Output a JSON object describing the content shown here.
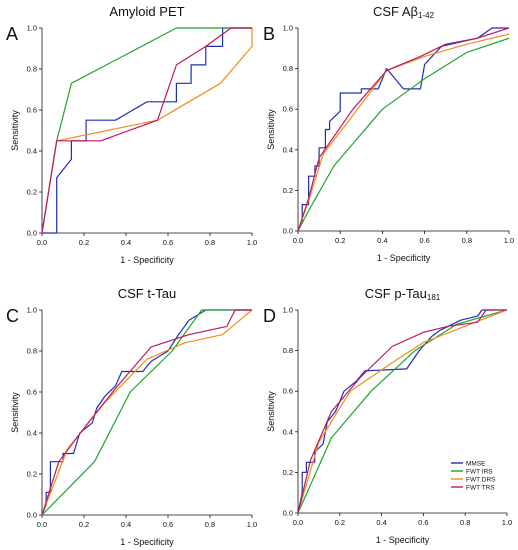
{
  "chart_data": [
    {
      "type": "line",
      "panel_label": "A",
      "title": "Amyloid PET",
      "title_subscript": "",
      "xlabel": "1 - Specificity",
      "ylabel": "Sensitivity",
      "xlim": [
        0,
        1
      ],
      "ylim": [
        0,
        1
      ],
      "xticks": [
        "0.0",
        "0.2",
        "0.4",
        "0.6",
        "0.8",
        "1.0"
      ],
      "yticks": [
        "0.0",
        "0.2",
        "0.4",
        "0.6",
        "0.8",
        "1.0"
      ],
      "legend": null,
      "series": [
        {
          "name": "MMSE",
          "color": "#1f2fb3",
          "points": [
            [
              0,
              0
            ],
            [
              0.07,
              0
            ],
            [
              0.07,
              0.27
            ],
            [
              0.14,
              0.36
            ],
            [
              0.14,
              0.45
            ],
            [
              0.21,
              0.45
            ],
            [
              0.21,
              0.55
            ],
            [
              0.35,
              0.55
            ],
            [
              0.5,
              0.64
            ],
            [
              0.64,
              0.64
            ],
            [
              0.64,
              0.73
            ],
            [
              0.71,
              0.73
            ],
            [
              0.71,
              0.82
            ],
            [
              0.78,
              0.82
            ],
            [
              0.78,
              0.91
            ],
            [
              0.86,
              0.91
            ],
            [
              0.86,
              1.0
            ],
            [
              1.0,
              1.0
            ]
          ]
        },
        {
          "name": "FWT IRS",
          "color": "#1fa52b",
          "points": [
            [
              0,
              0
            ],
            [
              0.07,
              0.45
            ],
            [
              0.14,
              0.73
            ],
            [
              0.64,
              1.0
            ],
            [
              1.0,
              1.0
            ]
          ]
        },
        {
          "name": "FWT DRS",
          "color": "#f28c1c",
          "points": [
            [
              0,
              0
            ],
            [
              0.07,
              0.45
            ],
            [
              0.55,
              0.55
            ],
            [
              0.85,
              0.73
            ],
            [
              1.0,
              0.91
            ],
            [
              1.0,
              1.0
            ],
            [
              0.95,
              1.0
            ]
          ]
        },
        {
          "name": "FWT TRS",
          "color": "#c0185e",
          "points": [
            [
              0,
              0
            ],
            [
              0.07,
              0.45
            ],
            [
              0.28,
              0.45
            ],
            [
              0.55,
              0.55
            ],
            [
              0.64,
              0.82
            ],
            [
              0.78,
              0.91
            ],
            [
              0.9,
              1.0
            ],
            [
              1.0,
              1.0
            ]
          ]
        }
      ]
    },
    {
      "type": "line",
      "panel_label": "B",
      "title": "CSF Aβ",
      "title_subscript": "1-42",
      "xlabel": "1 - Specificity",
      "ylabel": "Sensitivity",
      "xlim": [
        0,
        1
      ],
      "ylim": [
        0,
        1
      ],
      "xticks": [
        "0.0",
        "0.2",
        "0.4",
        "0.6",
        "0.8",
        "1.0"
      ],
      "yticks": [
        "0.0",
        "0.2",
        "0.4",
        "0.6",
        "0.8",
        "1.0"
      ],
      "legend": null,
      "series": [
        {
          "name": "MMSE",
          "color": "#1f2fb3",
          "points": [
            [
              0,
              0
            ],
            [
              0.02,
              0.05
            ],
            [
              0.02,
              0.13
            ],
            [
              0.05,
              0.13
            ],
            [
              0.05,
              0.27
            ],
            [
              0.08,
              0.27
            ],
            [
              0.08,
              0.32
            ],
            [
              0.1,
              0.32
            ],
            [
              0.1,
              0.41
            ],
            [
              0.13,
              0.41
            ],
            [
              0.13,
              0.5
            ],
            [
              0.15,
              0.5
            ],
            [
              0.15,
              0.54
            ],
            [
              0.2,
              0.59
            ],
            [
              0.2,
              0.68
            ],
            [
              0.3,
              0.68
            ],
            [
              0.3,
              0.7
            ],
            [
              0.38,
              0.7
            ],
            [
              0.42,
              0.8
            ],
            [
              0.5,
              0.7
            ],
            [
              0.58,
              0.7
            ],
            [
              0.6,
              0.82
            ],
            [
              0.68,
              0.91
            ],
            [
              0.85,
              0.95
            ],
            [
              0.92,
              1.0
            ],
            [
              1.0,
              1.0
            ]
          ]
        },
        {
          "name": "FWT IRS",
          "color": "#1fa52b",
          "points": [
            [
              0,
              0
            ],
            [
              0.05,
              0.1
            ],
            [
              0.17,
              0.32
            ],
            [
              0.4,
              0.6
            ],
            [
              0.6,
              0.75
            ],
            [
              0.8,
              0.88
            ],
            [
              1.0,
              0.95
            ]
          ]
        },
        {
          "name": "FWT DRS",
          "color": "#f28c1c",
          "points": [
            [
              0,
              0
            ],
            [
              0.05,
              0.15
            ],
            [
              0.12,
              0.38
            ],
            [
              0.26,
              0.57
            ],
            [
              0.42,
              0.79
            ],
            [
              0.6,
              0.86
            ],
            [
              0.8,
              0.92
            ],
            [
              1.0,
              0.97
            ]
          ]
        },
        {
          "name": "FWT TRS",
          "color": "#c0185e",
          "points": [
            [
              0,
              0
            ],
            [
              0.05,
              0.16
            ],
            [
              0.1,
              0.36
            ],
            [
              0.18,
              0.48
            ],
            [
              0.26,
              0.6
            ],
            [
              0.42,
              0.79
            ],
            [
              0.58,
              0.86
            ],
            [
              0.7,
              0.92
            ],
            [
              0.85,
              0.95
            ],
            [
              1.0,
              1.0
            ]
          ]
        }
      ]
    },
    {
      "type": "line",
      "panel_label": "C",
      "title": "CSF t-Tau",
      "title_subscript": "",
      "xlabel": "1 - Specificity",
      "ylabel": "Sensitivity",
      "xlim": [
        0,
        1
      ],
      "ylim": [
        0,
        1
      ],
      "xticks": [
        "0.0",
        "0.2",
        "0.4",
        "0.6",
        "0.8",
        "1.0"
      ],
      "yticks": [
        "0.0",
        "0.2",
        "0.4",
        "0.6",
        "0.8",
        "1.0"
      ],
      "legend": null,
      "series": [
        {
          "name": "MMSE",
          "color": "#1f2fb3",
          "points": [
            [
              0,
              0
            ],
            [
              0.02,
              0.05
            ],
            [
              0.02,
              0.11
            ],
            [
              0.04,
              0.11
            ],
            [
              0.04,
              0.26
            ],
            [
              0.1,
              0.26
            ],
            [
              0.1,
              0.3
            ],
            [
              0.15,
              0.3
            ],
            [
              0.18,
              0.4
            ],
            [
              0.24,
              0.45
            ],
            [
              0.26,
              0.52
            ],
            [
              0.3,
              0.58
            ],
            [
              0.35,
              0.63
            ],
            [
              0.38,
              0.7
            ],
            [
              0.48,
              0.7
            ],
            [
              0.52,
              0.75
            ],
            [
              0.6,
              0.8
            ],
            [
              0.65,
              0.88
            ],
            [
              0.7,
              0.95
            ],
            [
              0.78,
              1.0
            ],
            [
              1.0,
              1.0
            ]
          ]
        },
        {
          "name": "FWT IRS",
          "color": "#1fa52b",
          "points": [
            [
              0,
              0
            ],
            [
              0.25,
              0.26
            ],
            [
              0.42,
              0.6
            ],
            [
              0.62,
              0.8
            ],
            [
              0.76,
              1.0
            ],
            [
              1.0,
              1.0
            ]
          ]
        },
        {
          "name": "FWT DRS",
          "color": "#f28c1c",
          "points": [
            [
              0,
              0
            ],
            [
              0.12,
              0.32
            ],
            [
              0.3,
              0.55
            ],
            [
              0.5,
              0.76
            ],
            [
              0.68,
              0.84
            ],
            [
              0.86,
              0.88
            ],
            [
              1.0,
              1.0
            ]
          ]
        },
        {
          "name": "FWT TRS",
          "color": "#c0185e",
          "points": [
            [
              0,
              0
            ],
            [
              0.08,
              0.26
            ],
            [
              0.22,
              0.45
            ],
            [
              0.36,
              0.63
            ],
            [
              0.52,
              0.82
            ],
            [
              0.7,
              0.88
            ],
            [
              0.88,
              0.92
            ],
            [
              0.92,
              1.0
            ],
            [
              1.0,
              1.0
            ]
          ]
        }
      ]
    },
    {
      "type": "line",
      "panel_label": "D",
      "title": "CSF p-Tau",
      "title_subscript": "181",
      "xlabel": "1 - Specificity",
      "ylabel": "Sensitivity",
      "xlim": [
        0,
        1
      ],
      "ylim": [
        0,
        1
      ],
      "xticks": [
        "0.0",
        "0.2",
        "0.4",
        "0.6",
        "0.8",
        "1.0"
      ],
      "yticks": [
        "0.0",
        "0.2",
        "0.4",
        "0.6",
        "0.8",
        "1.0"
      ],
      "legend": {
        "position": "bottom-right",
        "entries": [
          "MMSE",
          "FWT IRS",
          "FWT DRS",
          "FWT TRS"
        ]
      },
      "series": [
        {
          "name": "MMSE",
          "color": "#1f2fb3",
          "points": [
            [
              0,
              0
            ],
            [
              0.02,
              0.1
            ],
            [
              0.02,
              0.2
            ],
            [
              0.04,
              0.2
            ],
            [
              0.04,
              0.25
            ],
            [
              0.08,
              0.25
            ],
            [
              0.08,
              0.3
            ],
            [
              0.12,
              0.34
            ],
            [
              0.14,
              0.45
            ],
            [
              0.18,
              0.5
            ],
            [
              0.22,
              0.6
            ],
            [
              0.28,
              0.65
            ],
            [
              0.32,
              0.7
            ],
            [
              0.52,
              0.71
            ],
            [
              0.58,
              0.8
            ],
            [
              0.64,
              0.87
            ],
            [
              0.68,
              0.9
            ],
            [
              0.78,
              0.95
            ],
            [
              0.86,
              0.97
            ],
            [
              0.88,
              1.0
            ],
            [
              1.0,
              1.0
            ]
          ]
        },
        {
          "name": "FWT IRS",
          "color": "#1fa52b",
          "points": [
            [
              0,
              0
            ],
            [
              0.16,
              0.37
            ],
            [
              0.35,
              0.6
            ],
            [
              0.56,
              0.8
            ],
            [
              0.76,
              0.93
            ],
            [
              1.0,
              1.0
            ]
          ]
        },
        {
          "name": "FWT DRS",
          "color": "#f28c1c",
          "points": [
            [
              0,
              0
            ],
            [
              0.1,
              0.35
            ],
            [
              0.25,
              0.6
            ],
            [
              0.45,
              0.74
            ],
            [
              0.6,
              0.84
            ],
            [
              0.8,
              0.92
            ],
            [
              1.0,
              1.0
            ]
          ]
        },
        {
          "name": "FWT TRS",
          "color": "#c0185e",
          "points": [
            [
              0,
              0
            ],
            [
              0.06,
              0.26
            ],
            [
              0.16,
              0.5
            ],
            [
              0.3,
              0.67
            ],
            [
              0.45,
              0.82
            ],
            [
              0.6,
              0.89
            ],
            [
              0.72,
              0.92
            ],
            [
              0.86,
              0.94
            ],
            [
              0.9,
              1.0
            ],
            [
              1.0,
              1.0
            ]
          ]
        }
      ]
    }
  ]
}
